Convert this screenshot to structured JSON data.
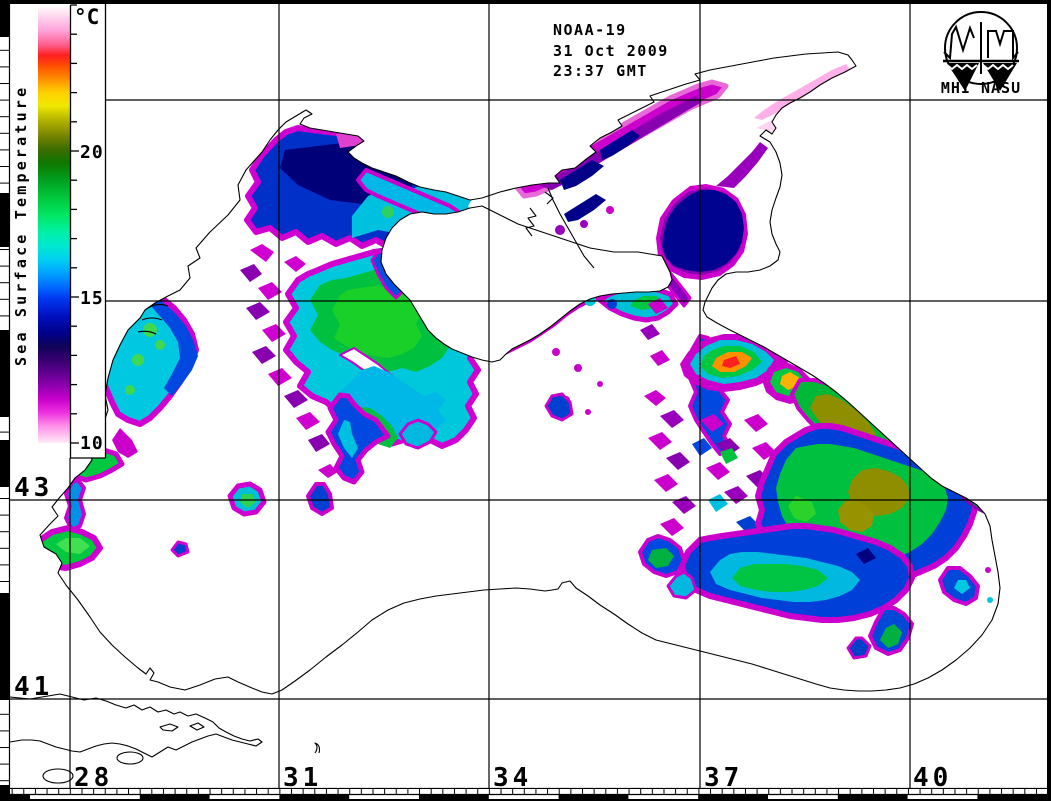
{
  "header": {
    "satellite": "NOAA-19",
    "date": "31 Oct 2009",
    "time": "23:37 GMT"
  },
  "logo": {
    "caption": "MHI NASU"
  },
  "legend": {
    "title": "Sea Surface Temperature",
    "unit": "°C",
    "tick_labels": [
      "20",
      "15",
      "10"
    ],
    "range_c": {
      "min": 10,
      "max": 25
    },
    "gradient_stops": [
      {
        "at": 0,
        "color": "#ffffff"
      },
      {
        "at": 2.5,
        "color": "#ffd8f0"
      },
      {
        "at": 6,
        "color": "#ffa0d8"
      },
      {
        "at": 9,
        "color": "#ff6090"
      },
      {
        "at": 11.5,
        "color": "#ff2020"
      },
      {
        "at": 14,
        "color": "#ff5000"
      },
      {
        "at": 17,
        "color": "#ff9000"
      },
      {
        "at": 20,
        "color": "#ffd000"
      },
      {
        "at": 23,
        "color": "#f0e800"
      },
      {
        "at": 26,
        "color": "#b8b800"
      },
      {
        "at": 29.5,
        "color": "#7e8800"
      },
      {
        "at": 33,
        "color": "#3c6c00"
      },
      {
        "at": 36,
        "color": "#107800"
      },
      {
        "at": 40,
        "color": "#00a020"
      },
      {
        "at": 44,
        "color": "#00c83c"
      },
      {
        "at": 48,
        "color": "#00e664"
      },
      {
        "at": 51.5,
        "color": "#00f0a0"
      },
      {
        "at": 55,
        "color": "#00e8d0"
      },
      {
        "at": 58,
        "color": "#00d2f0"
      },
      {
        "at": 61,
        "color": "#00a6ff"
      },
      {
        "at": 64,
        "color": "#0072ff"
      },
      {
        "at": 67,
        "color": "#0038f0"
      },
      {
        "at": 71,
        "color": "#0010c0"
      },
      {
        "at": 75,
        "color": "#000088"
      },
      {
        "at": 78,
        "color": "#100458"
      },
      {
        "at": 81,
        "color": "#380070"
      },
      {
        "at": 84,
        "color": "#600090"
      },
      {
        "at": 87,
        "color": "#9000b0"
      },
      {
        "at": 90,
        "color": "#c800cc"
      },
      {
        "at": 93,
        "color": "#ee30e0"
      },
      {
        "at": 96,
        "color": "#ff8ce8"
      },
      {
        "at": 98.5,
        "color": "#ffc8f2"
      },
      {
        "at": 100,
        "color": "#ffecfa"
      }
    ]
  },
  "axes": {
    "longitude_labels": [
      "28",
      "31",
      "34",
      "37",
      "40"
    ],
    "latitude_labels": [
      "43",
      "41"
    ]
  },
  "palette": {
    "no_data": "#ffffff",
    "coastline": "#000000",
    "grid": "#000000",
    "fringe_magenta": "#cc00cc",
    "purple": "#8800b0",
    "navy": "#000090",
    "blue": "#0040d8",
    "cyan": "#00c0e0",
    "green": "#00c040",
    "bright_green": "#30e030",
    "olive": "#8e8e00",
    "orange": "#ff9000",
    "red": "#ff2020",
    "pale_pink": "#ffb0e8"
  }
}
